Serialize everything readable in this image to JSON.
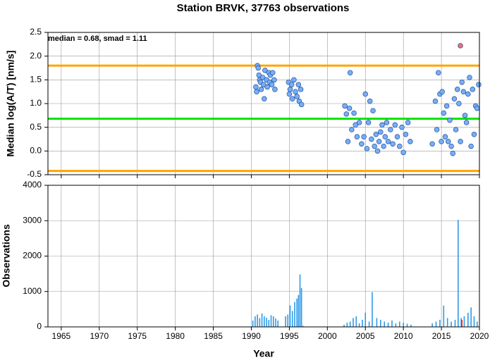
{
  "chart_data": [
    {
      "type": "scatter",
      "title": "Station BRVK, 37763 observations",
      "ylabel": "Median log(A/T) [nm/s]",
      "annotation": "median = 0.68, smad = 1.11",
      "xlim": [
        1963.25,
        2020
      ],
      "xticks": [
        1965,
        1970,
        1975,
        1980,
        1985,
        1990,
        1995,
        2000,
        2005,
        2010,
        2015,
        2020
      ],
      "ylim": [
        -0.5,
        2.5
      ],
      "yticks": [
        -0.5,
        {
          "value": 0,
          "label": "0.0"
        },
        0.5,
        {
          "value": 1,
          "label": "1.0"
        },
        1.5,
        {
          "value": 2,
          "label": "2.0"
        },
        2.5
      ],
      "grid": true,
      "hlines": [
        {
          "value": 1.8,
          "color": "#ffa500"
        },
        {
          "value": 0.68,
          "color": "#00e600"
        },
        {
          "value": -0.42,
          "color": "#ffa500"
        }
      ],
      "series": [
        {
          "color": "#78aef5",
          "x": [
            1990.6,
            1990.7,
            1990.8,
            1990.9,
            1991.0,
            1991.1,
            1991.2,
            1991.3,
            1991.5,
            1991.6,
            1991.7,
            1991.8,
            1992.0,
            1992.1,
            1992.3,
            1992.4,
            1992.5,
            1992.7,
            1992.8,
            1993.0,
            1993.1,
            1994.9,
            1995.0,
            1995.1,
            1995.3,
            1995.4,
            1995.6,
            1995.8,
            1996.0,
            1996.2,
            1996.3,
            1996.5,
            1996.6,
            2002.3,
            2002.5,
            2002.7,
            2002.9,
            2003.0,
            2003.2,
            2003.5,
            2003.7,
            2003.9,
            2004.2,
            2004.5,
            2004.8,
            2005.0,
            2005.2,
            2005.4,
            2005.6,
            2005.8,
            2006.0,
            2006.2,
            2006.4,
            2006.6,
            2006.8,
            2007.0,
            2007.2,
            2007.4,
            2007.6,
            2007.8,
            2008.0,
            2008.3,
            2008.6,
            2008.9,
            2009.2,
            2009.5,
            2009.8,
            2010.0,
            2010.3,
            2010.6,
            2010.9,
            2013.8,
            2014.2,
            2014.4,
            2014.6,
            2014.8,
            2015.0,
            2015.1,
            2015.3,
            2015.5,
            2015.7,
            2015.9,
            2016.1,
            2016.3,
            2016.5,
            2016.7,
            2016.9,
            2017.1,
            2017.3,
            2017.5,
            2017.7,
            2017.9,
            2018.1,
            2018.3,
            2018.5,
            2018.7,
            2018.9,
            2019.1,
            2019.3,
            2019.5,
            2019.7,
            2019.9
          ],
          "values": [
            1.35,
            1.25,
            1.8,
            1.75,
            1.6,
            1.5,
            1.45,
            1.3,
            1.55,
            1.4,
            1.1,
            1.7,
            1.5,
            1.35,
            1.65,
            1.45,
            1.6,
            1.4,
            1.65,
            1.5,
            1.3,
            1.45,
            1.2,
            1.3,
            1.4,
            1.1,
            1.5,
            1.25,
            1.15,
            1.4,
            1.05,
            1.3,
            0.98,
            0.95,
            0.78,
            0.2,
            0.9,
            1.65,
            0.45,
            0.8,
            0.55,
            0.3,
            0.6,
            0.15,
            0.3,
            1.2,
            0.05,
            0.6,
            1.05,
            0.25,
            0.85,
            0.1,
            0.35,
            0.0,
            0.2,
            0.4,
            0.55,
            0.1,
            0.3,
            0.6,
            0.2,
            0.45,
            0.15,
            0.55,
            0.3,
            0.1,
            0.5,
            -0.03,
            0.35,
            0.6,
            0.2,
            0.15,
            1.05,
            0.45,
            1.65,
            1.2,
            0.2,
            1.25,
            0.8,
            0.3,
            0.95,
            0.2,
            0.65,
            0.1,
            -0.05,
            1.1,
            0.45,
            1.3,
            1.0,
            0.2,
            1.45,
            1.25,
            0.75,
            0.6,
            1.2,
            1.55,
            0.1,
            1.3,
            0.35,
            0.95,
            0.9,
            1.4
          ]
        },
        {
          "color": "#f07070",
          "x": [
            2017.5
          ],
          "values": [
            2.22
          ]
        }
      ]
    },
    {
      "type": "bar",
      "ylabel": "Observations",
      "xlabel": "Year",
      "xlim": [
        1963.25,
        2020
      ],
      "xticks": [
        1965,
        1970,
        1975,
        1980,
        1985,
        1990,
        1995,
        2000,
        2005,
        2010,
        2015,
        2020
      ],
      "ylim": [
        0,
        4000
      ],
      "yticks": [
        0,
        1000,
        2000,
        3000,
        4000
      ],
      "grid": true,
      "series": [
        {
          "color": "#2e9be8",
          "x": [
            1990.2,
            1990.5,
            1990.8,
            1991.1,
            1991.4,
            1991.7,
            1992.0,
            1992.3,
            1992.6,
            1992.9,
            1993.2,
            1993.5,
            1994.5,
            1994.8,
            1995.1,
            1995.4,
            1995.7,
            1996.0,
            1996.2,
            1996.4,
            1996.6,
            1996.8,
            2002.2,
            2002.6,
            2003.0,
            2003.4,
            2003.8,
            2004.2,
            2004.6,
            2005.0,
            2005.5,
            2005.9,
            2006.5,
            2007.0,
            2007.5,
            2008.0,
            2008.5,
            2009.0,
            2009.5,
            2010.0,
            2010.5,
            2011.0,
            2013.8,
            2014.3,
            2014.8,
            2015.3,
            2015.8,
            2016.3,
            2016.8,
            2017.2,
            2017.6,
            2018.0,
            2018.5,
            2018.9,
            2019.3,
            2019.7
          ],
          "values": [
            180,
            300,
            350,
            250,
            380,
            300,
            260,
            200,
            330,
            300,
            240,
            180,
            300,
            350,
            600,
            450,
            700,
            800,
            900,
            1480,
            1100,
            30,
            60,
            120,
            150,
            250,
            300,
            100,
            200,
            400,
            150,
            980,
            250,
            200,
            150,
            120,
            180,
            100,
            150,
            120,
            90,
            60,
            100,
            150,
            200,
            600,
            250,
            150,
            200,
            3020,
            250,
            300,
            400,
            550,
            300,
            150
          ]
        },
        {
          "color": "#ee2222",
          "x": [
            2017.7
          ],
          "values": [
            200
          ]
        }
      ]
    }
  ]
}
